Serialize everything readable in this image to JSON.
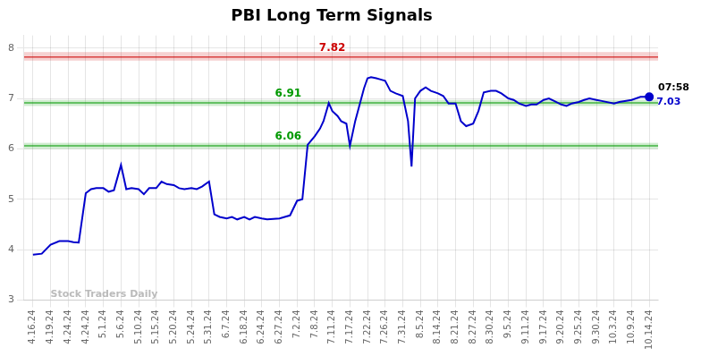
{
  "chart_data": {
    "type": "line",
    "title": "PBI Long Term Signals",
    "x": [
      0,
      0.5,
      1,
      1.5,
      2,
      2.3,
      2.6,
      3,
      3.3,
      3.6,
      4,
      4.3,
      4.6,
      5,
      5.3,
      5.6,
      6,
      6.3,
      6.6,
      7,
      7.3,
      7.6,
      8,
      8.3,
      8.6,
      9,
      9.3,
      9.6,
      10,
      10.3,
      10.6,
      11,
      11.3,
      11.6,
      12,
      12.3,
      12.6,
      13,
      13.3,
      14,
      14.3,
      14.6,
      15,
      15.3,
      15.6,
      16,
      16.3,
      16.5,
      16.8,
      17,
      17.3,
      17.5,
      17.8,
      18,
      18.3,
      18.8,
      19,
      19.2,
      19.5,
      19.7,
      20,
      20.3,
      20.6,
      21,
      21.3,
      21.5,
      21.7,
      22,
      22.3,
      22.6,
      23,
      23.3,
      23.6,
      24,
      24.3,
      24.6,
      25,
      25.3,
      25.6,
      26,
      26.3,
      26.6,
      27,
      27.3,
      27.6,
      28,
      28.3,
      28.6,
      29,
      29.3,
      29.6,
      30,
      30.3,
      30.6,
      31,
      31.3,
      31.6,
      32,
      32.3,
      33,
      33.3,
      34,
      34.5,
      35
    ],
    "values": [
      3.9,
      3.92,
      4.1,
      4.17,
      4.17,
      4.15,
      4.14,
      5.12,
      5.2,
      5.22,
      5.22,
      5.15,
      5.18,
      5.68,
      5.2,
      5.22,
      5.2,
      5.1,
      5.22,
      5.22,
      5.35,
      5.3,
      5.28,
      5.22,
      5.2,
      5.22,
      5.2,
      5.25,
      5.35,
      4.7,
      4.65,
      4.62,
      4.65,
      4.6,
      4.65,
      4.6,
      4.65,
      4.62,
      4.6,
      4.62,
      4.65,
      4.68,
      4.97,
      5.0,
      6.08,
      6.25,
      6.4,
      6.55,
      6.91,
      6.75,
      6.65,
      6.55,
      6.5,
      6.06,
      6.55,
      7.2,
      7.4,
      7.42,
      7.4,
      7.38,
      7.35,
      7.15,
      7.1,
      7.05,
      6.55,
      5.65,
      7.0,
      7.15,
      7.22,
      7.15,
      7.1,
      7.05,
      6.9,
      6.9,
      6.55,
      6.45,
      6.5,
      6.75,
      7.12,
      7.15,
      7.15,
      7.1,
      7.0,
      6.97,
      6.9,
      6.85,
      6.88,
      6.88,
      6.97,
      7.0,
      6.95,
      6.88,
      6.85,
      6.9,
      6.93,
      6.97,
      7.0,
      6.97,
      6.95,
      6.9,
      6.93,
      6.97,
      7.03,
      7.03
    ],
    "value_labels": [
      null,
      null,
      null,
      null,
      null,
      null,
      null,
      null,
      null,
      null,
      null,
      null,
      null,
      null,
      null,
      null,
      null,
      null,
      null,
      null,
      null,
      null,
      null,
      null,
      null,
      null,
      null,
      null,
      null,
      null,
      null,
      null,
      null,
      null,
      null,
      null,
      null,
      null,
      null,
      null,
      null,
      null,
      null,
      null,
      null,
      null,
      null,
      null,
      null,
      null,
      null,
      null,
      null,
      null,
      null,
      null,
      null,
      null,
      null,
      null,
      null,
      null,
      null,
      null,
      null,
      null,
      null,
      null,
      null,
      null,
      null,
      null,
      null,
      null,
      null,
      null,
      null,
      null,
      null,
      null,
      null,
      null,
      null,
      null,
      null,
      null,
      null,
      null,
      null,
      null,
      null,
      null,
      null,
      null,
      null,
      null,
      null,
      null,
      null,
      null,
      null,
      null,
      null,
      "7.03"
    ],
    "color": "#0000cc",
    "xlim": [
      -0.5,
      35.5
    ],
    "xticks": [
      {
        "value": 0,
        "label": "4.16.24"
      },
      {
        "value": 1,
        "label": "4.19.24"
      },
      {
        "value": 2,
        "label": "4.24.24"
      },
      {
        "value": 3,
        "label": "4.24.24"
      },
      {
        "value": 4,
        "label": "5.1.24"
      },
      {
        "value": 5,
        "label": "5.6.24"
      },
      {
        "value": 6,
        "label": "5.10.24"
      },
      {
        "value": 7,
        "label": "5.15.24"
      },
      {
        "value": 8,
        "label": "5.20.24"
      },
      {
        "value": 9,
        "label": "5.24.24"
      },
      {
        "value": 10,
        "label": "5.31.24"
      },
      {
        "value": 11,
        "label": "6.7.24"
      },
      {
        "value": 12,
        "label": "6.18.24"
      },
      {
        "value": 13,
        "label": "6.24.24"
      },
      {
        "value": 14,
        "label": "6.27.24"
      },
      {
        "value": 15,
        "label": "7.2.24"
      },
      {
        "value": 16,
        "label": "7.8.24"
      },
      {
        "value": 17,
        "label": "7.11.24"
      },
      {
        "value": 18,
        "label": "7.17.24"
      },
      {
        "value": 19,
        "label": "7.22.24"
      },
      {
        "value": 20,
        "label": "7.26.24"
      },
      {
        "value": 21,
        "label": "7.31.24"
      },
      {
        "value": 22,
        "label": "8.5.24"
      },
      {
        "value": 23,
        "label": "8.14.24"
      },
      {
        "value": 24,
        "label": "8.21.24"
      },
      {
        "value": 25,
        "label": "8.27.24"
      },
      {
        "value": 26,
        "label": "8.30.24"
      },
      {
        "value": 27,
        "label": "9.5.24"
      },
      {
        "value": 28,
        "label": "9.11.24"
      },
      {
        "value": 29,
        "label": "9.17.24"
      },
      {
        "value": 30,
        "label": "9.20.24"
      },
      {
        "value": 31,
        "label": "9.25.24"
      },
      {
        "value": 32,
        "label": "9.30.24"
      },
      {
        "value": 33,
        "label": "10.3.24"
      },
      {
        "value": 34,
        "label": "10.9.24"
      },
      {
        "value": 35,
        "label": "10.14.24"
      }
    ],
    "ylim": [
      3.0,
      8.25
    ],
    "yticks": [
      3,
      4,
      5,
      6,
      7,
      8
    ],
    "grid": true,
    "hlines": [
      {
        "y": 7.82,
        "band": [
          7.75,
          7.92
        ],
        "color": "#cc0000",
        "label": "7.82",
        "label_x": 17
      },
      {
        "y": 6.06,
        "band": [
          6.0,
          6.12
        ],
        "color": "#009900",
        "label": "6.06",
        "label_x": 14.5
      },
      {
        "y": 6.91,
        "band": [
          6.85,
          6.97
        ],
        "color": "#009900",
        "label": "6.91",
        "label_x": 14.5
      }
    ],
    "annotations": [
      {
        "text": "07:58",
        "x": 35.5,
        "y": 7.21,
        "color": "#000000"
      },
      {
        "text": "Stock Traders Daily",
        "x": 1,
        "y": 3.12,
        "color": "#bbbbbb"
      }
    ]
  }
}
